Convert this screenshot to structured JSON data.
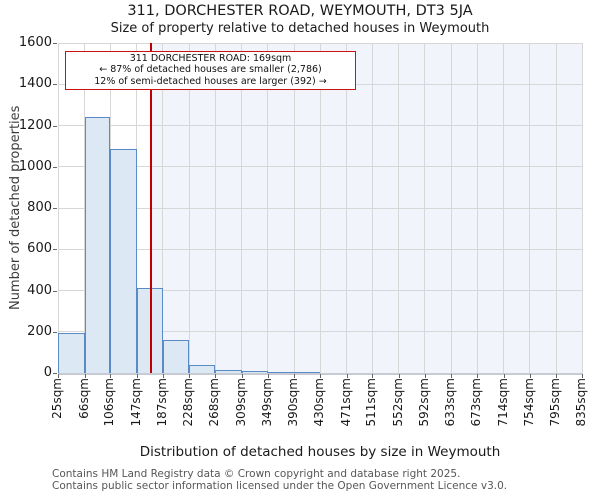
{
  "title": "311, DORCHESTER ROAD, WEYMOUTH, DT3 5JA",
  "subtitle": "Size of property relative to detached houses in Weymouth",
  "annotation": {
    "line1": "311 DORCHESTER ROAD: 169sqm",
    "line2": "← 87% of detached houses are smaller (2,786)",
    "line3": "12% of semi-detached houses are larger (392) →"
  },
  "chart_data": {
    "type": "bar",
    "title": "311, DORCHESTER ROAD, WEYMOUTH, DT3 5JA",
    "subtitle": "Size of property relative to detached houses in Weymouth",
    "xlabel": "Distribution of detached houses by size in Weymouth",
    "ylabel": "Number of detached properties",
    "bin_edges_sqm": [
      25,
      66,
      106,
      147,
      187,
      228,
      268,
      309,
      349,
      390,
      430,
      471,
      511,
      552,
      592,
      633,
      673,
      714,
      754,
      795,
      835
    ],
    "tick_labels": [
      "25sqm",
      "66sqm",
      "106sqm",
      "147sqm",
      "187sqm",
      "228sqm",
      "268sqm",
      "309sqm",
      "349sqm",
      "390sqm",
      "430sqm",
      "471sqm",
      "511sqm",
      "552sqm",
      "592sqm",
      "633sqm",
      "673sqm",
      "714sqm",
      "754sqm",
      "795sqm",
      "835sqm"
    ],
    "values": [
      195,
      1240,
      1085,
      410,
      160,
      40,
      15,
      8,
      5,
      5,
      0,
      0,
      0,
      0,
      0,
      0,
      0,
      0,
      0,
      0
    ],
    "yticks": [
      0,
      200,
      400,
      600,
      800,
      1000,
      1200,
      1400,
      1600
    ],
    "ylim": [
      0,
      1600
    ],
    "xlim_sqm": [
      25,
      835
    ],
    "marker_sqm": 169,
    "grid": true,
    "legend": "none",
    "colors": {
      "bar_fill": "#dde8f5",
      "bar_border": "#5b8bc7",
      "marker_line": "#c00000",
      "shade_right_of_marker": "#f1f4fb",
      "gridline": "#d7d7d7",
      "annotation_border": "#cc1111"
    }
  },
  "footer": {
    "line1": "Contains HM Land Registry data © Crown copyright and database right 2025.",
    "line2": "Contains public sector information licensed under the Open Government Licence v3.0."
  }
}
